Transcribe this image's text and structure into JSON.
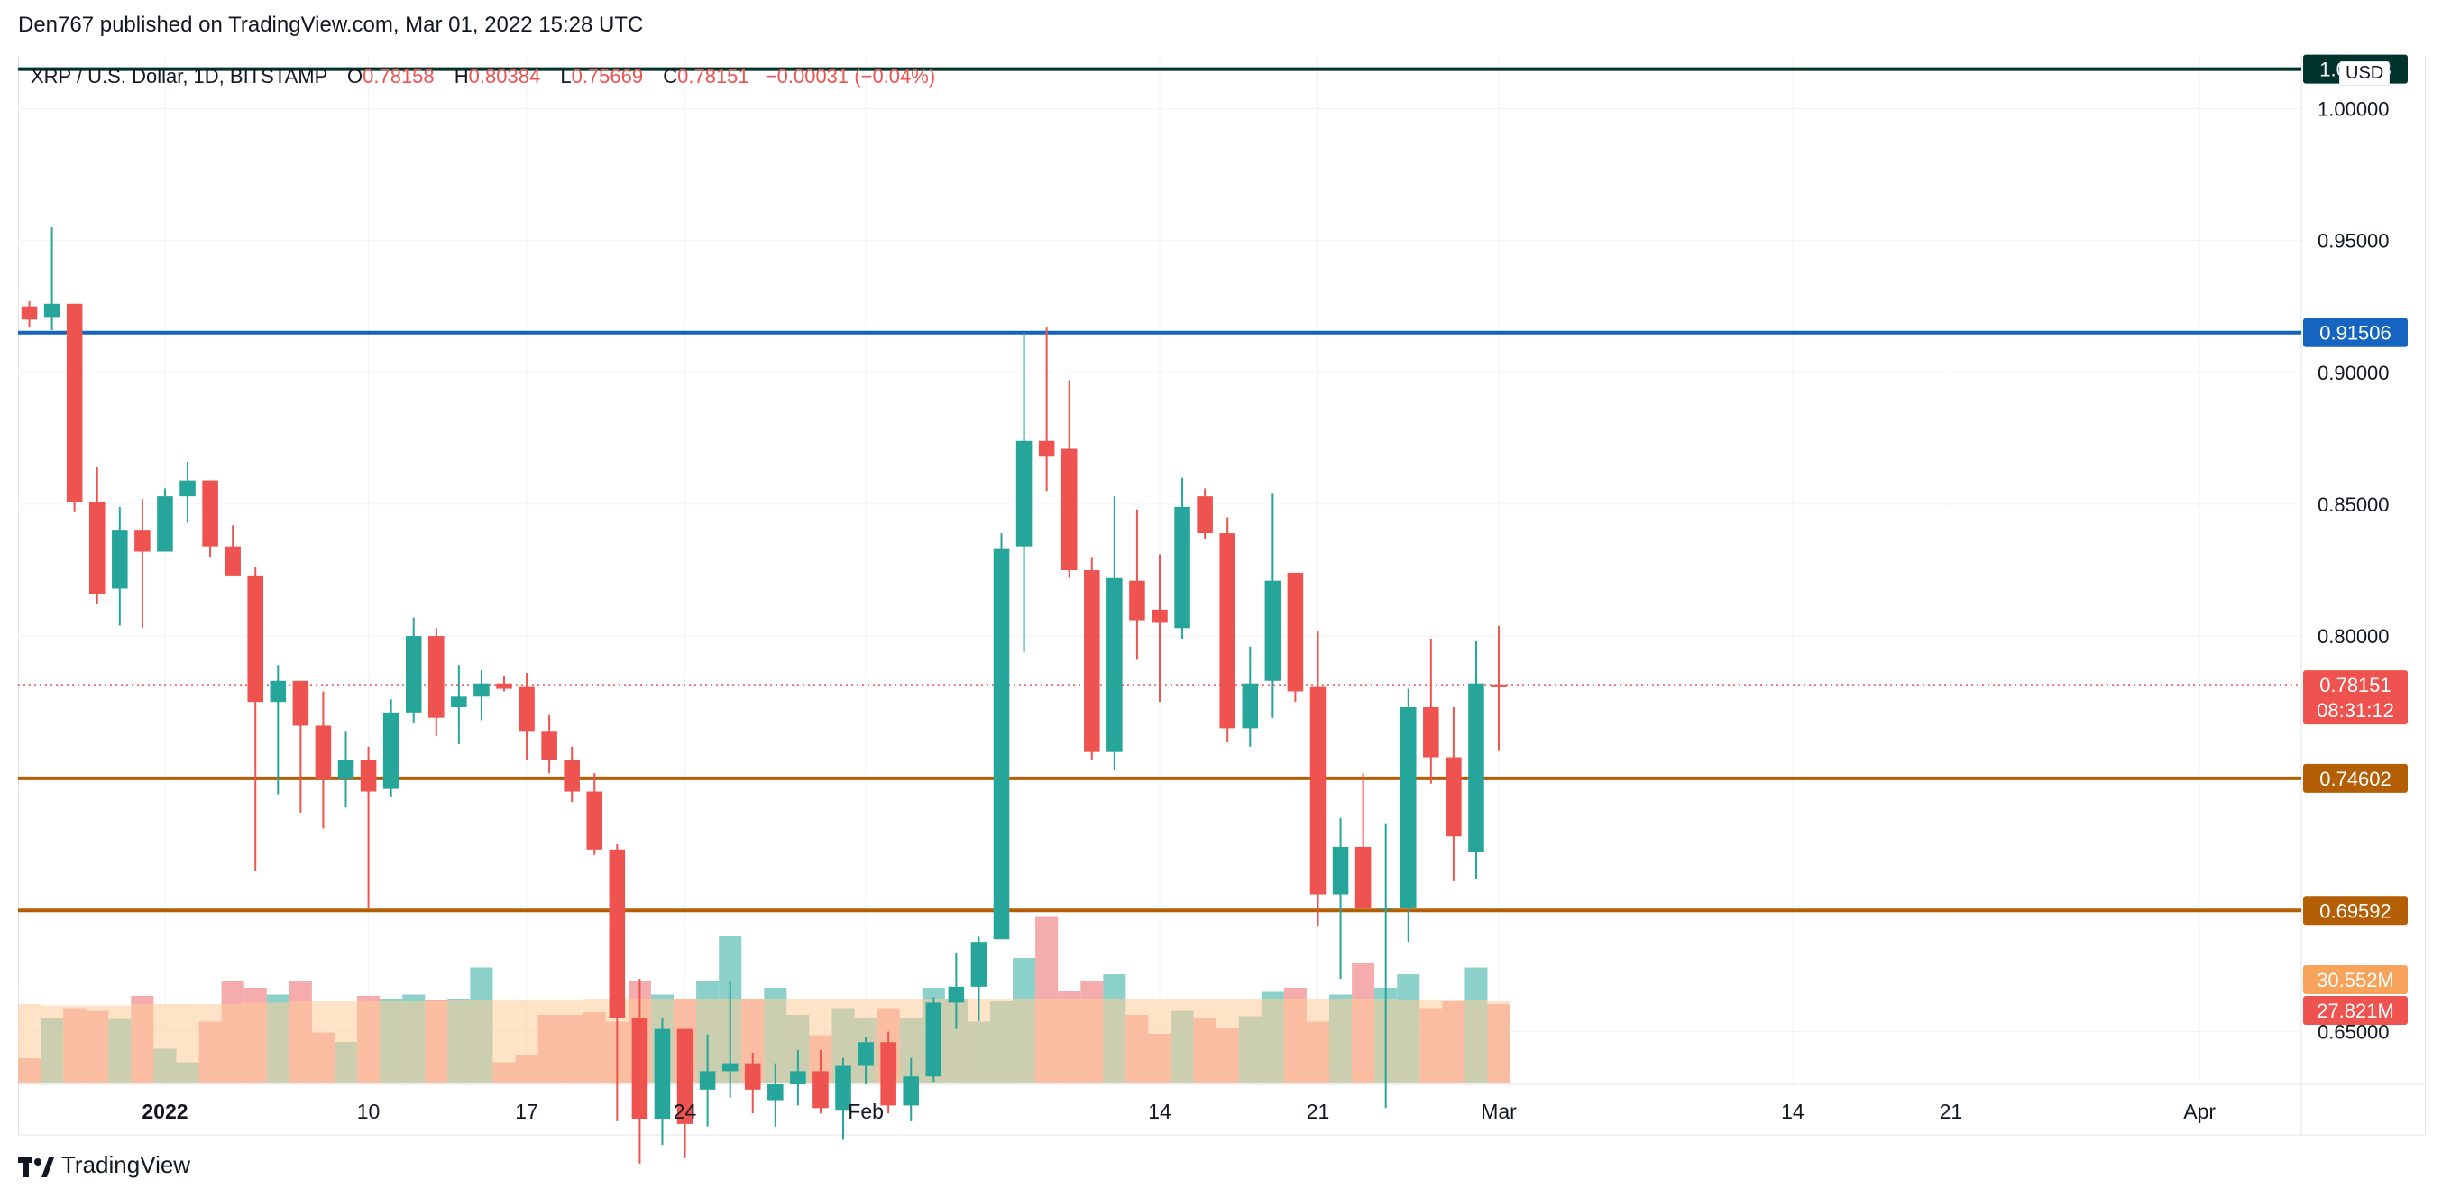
{
  "publisher": "Den767 published on TradingView.com, Mar 01, 2022 15:28 UTC",
  "legend": {
    "symbol": "XRP / U.S. Dollar, 1D, BITSTAMP",
    "o_label": "O",
    "o": "0.78158",
    "h_label": "H",
    "h": "0.80384",
    "l_label": "L",
    "l": "0.75669",
    "c_label": "C",
    "c": "0.78151",
    "change": "−0.00031 (−0.04%)"
  },
  "currency": "USD",
  "footer": {
    "brand": "TradingView",
    "logo_text": "TV"
  },
  "colors": {
    "up": "#26a69a",
    "down": "#ef5350",
    "up_volume": "#80cbc4",
    "down_volume": "#f4a3a3",
    "volume_ma": "#ffcc99",
    "blue_level": "#1565c0",
    "orange_level": "#b45f06",
    "top_level": "#00332c"
  },
  "chart_data": {
    "type": "candlestick",
    "interval": "1D",
    "first_date": "2021-12-25",
    "ylim": [
      0.63,
      1.02
    ],
    "y_ticks": [
      "1.00000",
      "0.95000",
      "0.90000",
      "0.85000",
      "0.80000",
      "0.65000"
    ],
    "x_ticks": [
      {
        "label": "2022",
        "day": 7,
        "bold": true
      },
      {
        "label": "10",
        "day": 16
      },
      {
        "label": "17",
        "day": 23
      },
      {
        "label": "24",
        "day": 30
      },
      {
        "label": "Feb",
        "day": 38
      },
      {
        "label": "14",
        "day": 51
      },
      {
        "label": "21",
        "day": 58
      },
      {
        "label": "Mar",
        "day": 66
      },
      {
        "label": "14",
        "day": 79
      },
      {
        "label": "21",
        "day": 86
      },
      {
        "label": "Apr",
        "day": 97
      }
    ],
    "x_range": [
      0.5,
      101.5
    ],
    "candles": [
      {
        "o": 0.925,
        "h": 0.927,
        "l": 0.917,
        "c": 0.92
      },
      {
        "o": 0.921,
        "h": 0.955,
        "l": 0.916,
        "c": 0.926
      },
      {
        "o": 0.926,
        "h": 0.926,
        "l": 0.847,
        "c": 0.851
      },
      {
        "o": 0.851,
        "h": 0.864,
        "l": 0.812,
        "c": 0.816
      },
      {
        "o": 0.818,
        "h": 0.849,
        "l": 0.804,
        "c": 0.84
      },
      {
        "o": 0.84,
        "h": 0.852,
        "l": 0.803,
        "c": 0.832
      },
      {
        "o": 0.832,
        "h": 0.856,
        "l": 0.832,
        "c": 0.853
      },
      {
        "o": 0.853,
        "h": 0.866,
        "l": 0.843,
        "c": 0.859
      },
      {
        "o": 0.859,
        "h": 0.859,
        "l": 0.83,
        "c": 0.834
      },
      {
        "o": 0.834,
        "h": 0.842,
        "l": 0.823,
        "c": 0.823
      },
      {
        "o": 0.823,
        "h": 0.826,
        "l": 0.711,
        "c": 0.775
      },
      {
        "o": 0.775,
        "h": 0.789,
        "l": 0.74,
        "c": 0.783
      },
      {
        "o": 0.783,
        "h": 0.783,
        "l": 0.733,
        "c": 0.766
      },
      {
        "o": 0.766,
        "h": 0.779,
        "l": 0.727,
        "c": 0.746
      },
      {
        "o": 0.746,
        "h": 0.764,
        "l": 0.735,
        "c": 0.753
      },
      {
        "o": 0.753,
        "h": 0.758,
        "l": 0.697,
        "c": 0.741
      },
      {
        "o": 0.742,
        "h": 0.776,
        "l": 0.739,
        "c": 0.771
      },
      {
        "o": 0.771,
        "h": 0.807,
        "l": 0.767,
        "c": 0.8
      },
      {
        "o": 0.8,
        "h": 0.803,
        "l": 0.762,
        "c": 0.769
      },
      {
        "o": 0.773,
        "h": 0.789,
        "l": 0.759,
        "c": 0.777
      },
      {
        "o": 0.777,
        "h": 0.787,
        "l": 0.768,
        "c": 0.782
      },
      {
        "o": 0.782,
        "h": 0.785,
        "l": 0.779,
        "c": 0.78
      },
      {
        "o": 0.781,
        "h": 0.786,
        "l": 0.753,
        "c": 0.764
      },
      {
        "o": 0.764,
        "h": 0.77,
        "l": 0.748,
        "c": 0.753
      },
      {
        "o": 0.753,
        "h": 0.758,
        "l": 0.737,
        "c": 0.741
      },
      {
        "o": 0.741,
        "h": 0.748,
        "l": 0.717,
        "c": 0.719
      },
      {
        "o": 0.719,
        "h": 0.721,
        "l": 0.616,
        "c": 0.655
      },
      {
        "o": 0.655,
        "h": 0.67,
        "l": 0.6,
        "c": 0.617
      },
      {
        "o": 0.617,
        "h": 0.655,
        "l": 0.607,
        "c": 0.651
      },
      {
        "o": 0.651,
        "h": 0.651,
        "l": 0.602,
        "c": 0.615
      },
      {
        "o": 0.628,
        "h": 0.649,
        "l": 0.614,
        "c": 0.635
      },
      {
        "o": 0.635,
        "h": 0.669,
        "l": 0.625,
        "c": 0.638
      },
      {
        "o": 0.638,
        "h": 0.642,
        "l": 0.619,
        "c": 0.628
      },
      {
        "o": 0.624,
        "h": 0.638,
        "l": 0.614,
        "c": 0.63
      },
      {
        "o": 0.63,
        "h": 0.643,
        "l": 0.622,
        "c": 0.635
      },
      {
        "o": 0.635,
        "h": 0.643,
        "l": 0.619,
        "c": 0.621
      },
      {
        "o": 0.62,
        "h": 0.64,
        "l": 0.609,
        "c": 0.637
      },
      {
        "o": 0.637,
        "h": 0.648,
        "l": 0.63,
        "c": 0.646
      },
      {
        "o": 0.646,
        "h": 0.65,
        "l": 0.619,
        "c": 0.622
      },
      {
        "o": 0.622,
        "h": 0.64,
        "l": 0.616,
        "c": 0.633
      },
      {
        "o": 0.633,
        "h": 0.663,
        "l": 0.631,
        "c": 0.661
      },
      {
        "o": 0.661,
        "h": 0.68,
        "l": 0.651,
        "c": 0.667
      },
      {
        "o": 0.667,
        "h": 0.686,
        "l": 0.654,
        "c": 0.684
      },
      {
        "o": 0.685,
        "h": 0.839,
        "l": 0.685,
        "c": 0.833
      },
      {
        "o": 0.834,
        "h": 0.915,
        "l": 0.794,
        "c": 0.874
      },
      {
        "o": 0.874,
        "h": 0.917,
        "l": 0.855,
        "c": 0.868
      },
      {
        "o": 0.871,
        "h": 0.897,
        "l": 0.822,
        "c": 0.825
      },
      {
        "o": 0.825,
        "h": 0.83,
        "l": 0.753,
        "c": 0.756
      },
      {
        "o": 0.756,
        "h": 0.853,
        "l": 0.749,
        "c": 0.822
      },
      {
        "o": 0.821,
        "h": 0.848,
        "l": 0.791,
        "c": 0.806
      },
      {
        "o": 0.81,
        "h": 0.831,
        "l": 0.775,
        "c": 0.805
      },
      {
        "o": 0.803,
        "h": 0.86,
        "l": 0.799,
        "c": 0.849
      },
      {
        "o": 0.853,
        "h": 0.856,
        "l": 0.837,
        "c": 0.839
      },
      {
        "o": 0.839,
        "h": 0.845,
        "l": 0.76,
        "c": 0.765
      },
      {
        "o": 0.765,
        "h": 0.796,
        "l": 0.758,
        "c": 0.782
      },
      {
        "o": 0.783,
        "h": 0.854,
        "l": 0.769,
        "c": 0.821
      },
      {
        "o": 0.824,
        "h": 0.824,
        "l": 0.775,
        "c": 0.779
      },
      {
        "o": 0.781,
        "h": 0.802,
        "l": 0.69,
        "c": 0.702
      },
      {
        "o": 0.702,
        "h": 0.731,
        "l": 0.67,
        "c": 0.72
      },
      {
        "o": 0.72,
        "h": 0.748,
        "l": 0.697,
        "c": 0.697
      },
      {
        "o": 0.697,
        "h": 0.729,
        "l": 0.621,
        "c": 0.697
      },
      {
        "o": 0.697,
        "h": 0.78,
        "l": 0.684,
        "c": 0.773
      },
      {
        "o": 0.773,
        "h": 0.799,
        "l": 0.744,
        "c": 0.754
      },
      {
        "o": 0.754,
        "h": 0.773,
        "l": 0.707,
        "c": 0.724
      },
      {
        "o": 0.718,
        "h": 0.798,
        "l": 0.708,
        "c": 0.782
      },
      {
        "o": 0.78158,
        "h": 0.80384,
        "l": 0.75669,
        "c": 0.78151
      }
    ],
    "volume": {
      "scale_max": 160,
      "values": [
        18,
        48,
        55,
        53,
        47,
        64,
        25,
        15,
        45,
        75,
        70,
        65,
        75,
        37,
        30,
        64,
        62,
        65,
        61,
        62,
        85,
        15,
        20,
        50,
        50,
        52,
        45,
        75,
        65,
        62,
        75,
        108,
        62,
        70,
        50,
        35,
        55,
        48,
        55,
        48,
        70,
        62,
        45,
        60,
        92,
        123,
        68,
        75,
        80,
        50,
        36,
        53,
        48,
        40,
        49,
        67,
        70,
        45,
        65,
        88,
        70,
        80,
        55,
        60,
        85,
        58
      ],
      "ma": [
        58,
        57,
        57,
        57,
        57,
        58,
        58,
        58,
        58,
        58,
        59,
        59,
        60,
        60,
        60,
        60,
        60,
        60,
        60,
        61,
        61,
        61,
        61,
        61,
        61,
        62,
        62,
        62,
        62,
        62,
        62,
        62,
        62,
        62,
        62,
        62,
        62,
        62,
        62,
        62,
        62,
        62,
        62,
        62,
        62,
        62,
        62,
        62,
        62,
        62,
        62,
        62,
        62,
        62,
        62,
        62,
        62,
        62,
        62,
        62,
        62,
        61,
        61,
        61,
        61,
        60
      ]
    },
    "levels": [
      {
        "value": 1.01498,
        "label": "1.01498",
        "color": "#00332c"
      },
      {
        "value": 0.91506,
        "label": "0.91506",
        "color": "#1565c0"
      },
      {
        "value": 0.74602,
        "label": "0.74602",
        "color": "#b45f06"
      },
      {
        "value": 0.69592,
        "label": "0.69592",
        "color": "#b45f06"
      }
    ],
    "last_price": {
      "value": 0.78151,
      "label": "0.78151",
      "countdown": "08:31:12"
    },
    "volume_labels": [
      "30.552M",
      "27.821M"
    ]
  }
}
